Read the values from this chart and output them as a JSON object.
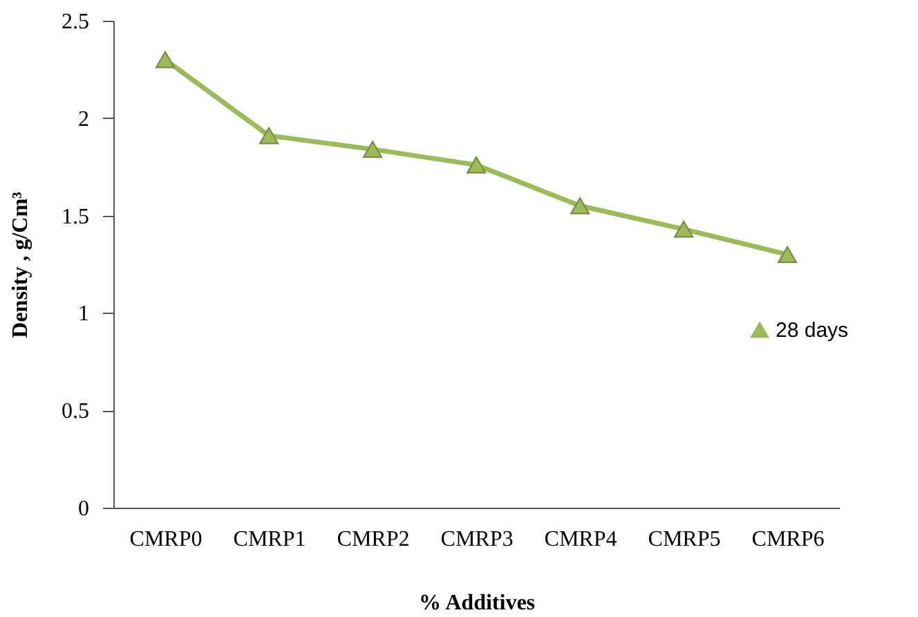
{
  "chart_data": {
    "type": "line",
    "xlabel": "% Additives",
    "ylabel": "Density , g/Cm³",
    "categories": [
      "CMRP0",
      "CMRP1",
      "CMRP2",
      "CMRP3",
      "CMRP4",
      "CMRP5",
      "CMRP6"
    ],
    "series": [
      {
        "name": "28 days",
        "color": "#9bbb59",
        "values": [
          2.3,
          1.91,
          1.84,
          1.76,
          1.55,
          1.43,
          1.3
        ]
      }
    ],
    "ylim": [
      0,
      2.5
    ],
    "yticks": [
      0,
      0.5,
      1,
      1.5,
      2,
      2.5
    ],
    "grid": false,
    "legend": "right",
    "marker": "triangle",
    "line_style": "solid"
  }
}
